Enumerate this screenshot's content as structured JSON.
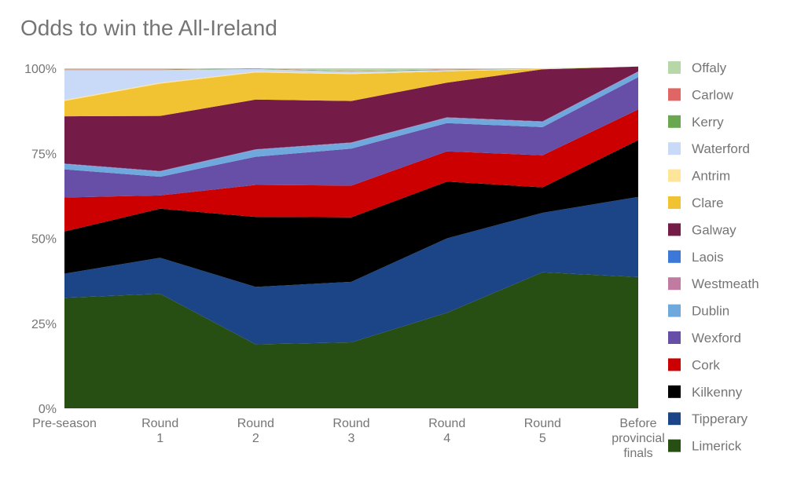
{
  "chart_data": {
    "type": "area",
    "stacked": true,
    "percent": true,
    "title": "Odds to win the All-Ireland",
    "xlabel": "",
    "ylabel": "",
    "ylim": [
      0,
      100
    ],
    "y_ticks": [
      "0%",
      "25%",
      "50%",
      "75%",
      "100%"
    ],
    "categories": [
      "Pre-season",
      "Round 1",
      "Round 2",
      "Round 3",
      "Round 4",
      "Round 5",
      "Before provincial finals"
    ],
    "legend_position": "right",
    "series": [
      {
        "name": "Limerick",
        "color": "#274e13",
        "values": [
          32.5,
          33.7,
          18.8,
          19.4,
          28.1,
          40.0,
          38.6
        ]
      },
      {
        "name": "Tipperary",
        "color": "#1c4587",
        "values": [
          7.1,
          10.6,
          16.9,
          17.8,
          21.9,
          17.5,
          23.6
        ]
      },
      {
        "name": "Kilkenny",
        "color": "#000000",
        "values": [
          12.4,
          14.4,
          20.6,
          19.0,
          16.7,
          7.5,
          16.7
        ]
      },
      {
        "name": "Cork",
        "color": "#cc0000",
        "values": [
          10.0,
          3.9,
          9.4,
          9.3,
          8.9,
          9.4,
          9.0
        ]
      },
      {
        "name": "Wexford",
        "color": "#674ea7",
        "values": [
          8.3,
          5.5,
          8.3,
          10.9,
          8.3,
          8.3,
          9.5
        ]
      },
      {
        "name": "Dublin",
        "color": "#6fa8dc",
        "values": [
          1.5,
          1.5,
          2.0,
          1.6,
          1.5,
          1.5,
          1.5
        ]
      },
      {
        "name": "Westmeath",
        "color": "#c27ba0",
        "values": [
          0.1,
          0.1,
          0.1,
          0.1,
          0.1,
          0.1,
          0.1
        ]
      },
      {
        "name": "Laois",
        "color": "#3c78d8",
        "values": [
          0.1,
          0.1,
          0.1,
          0.1,
          0.1,
          0.1,
          0.1
        ]
      },
      {
        "name": "Galway",
        "color": "#741b47",
        "values": [
          13.9,
          16.2,
          14.6,
          12.2,
          10.2,
          15.3,
          1.4
        ]
      },
      {
        "name": "Clare",
        "color": "#f1c232",
        "values": [
          4.5,
          9.5,
          8.0,
          7.9,
          3.3,
          0.1,
          0.0
        ]
      },
      {
        "name": "Antrim",
        "color": "#ffe599",
        "values": [
          0.3,
          0.3,
          0.2,
          0.2,
          0.1,
          0.1,
          0.0
        ]
      },
      {
        "name": "Waterford",
        "color": "#c9daf8",
        "values": [
          8.8,
          3.7,
          0.8,
          0.5,
          0.3,
          0.0,
          0.0
        ]
      },
      {
        "name": "Kerry",
        "color": "#6aa84f",
        "values": [
          0.1,
          0.1,
          0.1,
          0.1,
          0.1,
          0.0,
          0.0
        ]
      },
      {
        "name": "Carlow",
        "color": "#e06666",
        "values": [
          0.1,
          0.1,
          0.1,
          0.1,
          0.1,
          0.0,
          0.0
        ]
      },
      {
        "name": "Offaly",
        "color": "#b6d7a8",
        "values": [
          0.3,
          0.3,
          0.0,
          0.8,
          0.3,
          0.1,
          0.0
        ]
      }
    ]
  }
}
